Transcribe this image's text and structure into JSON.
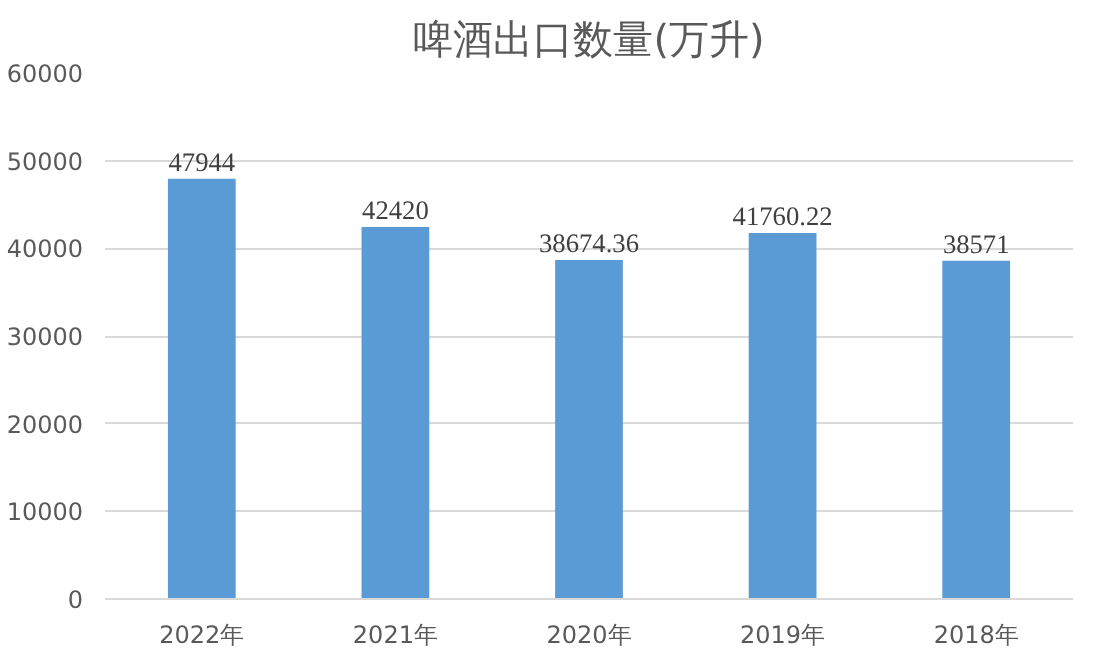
{
  "chart_data": {
    "type": "bar",
    "title": "啤酒出口数量(万升)",
    "categories": [
      "2022年",
      "2021年",
      "2020年",
      "2019年",
      "2018年"
    ],
    "values": [
      47944,
      42420,
      38674.36,
      41760.22,
      38571
    ],
    "color": "#5b9bd5",
    "ylim": [
      0,
      60000
    ],
    "yticks": [
      0,
      10000,
      20000,
      30000,
      40000,
      50000,
      60000
    ],
    "grid": "y",
    "data_labels": true
  }
}
